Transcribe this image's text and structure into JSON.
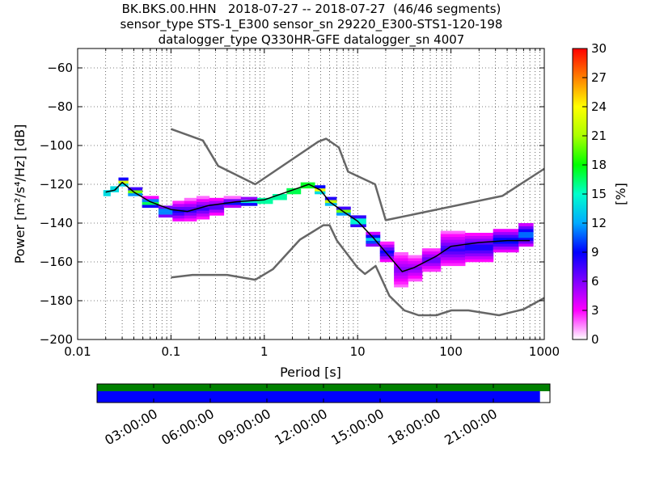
{
  "header": {
    "title_lines": [
      "BK.BKS.00.HHN   2018-07-27 -- 2018-07-27  (46/46 segments)",
      "sensor_type STS-1_E300 sensor_sn 29220_E300-STS1-120-198",
      "datalogger_type Q330HR-GFE datalogger_sn 4007"
    ]
  },
  "chart_data": [
    {
      "type": "heatmap",
      "xlabel": "Period [s]",
      "ylabel": "Power [m²/s⁴/Hz] [dB]",
      "xscale": "log",
      "xlim": [
        0.01,
        1000
      ],
      "ylim": [
        -200,
        -50
      ],
      "x_ticks": [
        0.01,
        0.1,
        1,
        10,
        100,
        1000
      ],
      "x_tick_labels": [
        "0.01",
        "0.1",
        "1",
        "10",
        "100",
        "1000"
      ],
      "y_ticks": [
        -60,
        -80,
        -100,
        -120,
        -140,
        -160,
        -180,
        -200
      ],
      "y_tick_labels": [
        "−60",
        "−80",
        "−100",
        "−120",
        "−140",
        "−160",
        "−180",
        "−200"
      ],
      "grid": true,
      "colorbar": {
        "label": "[%]",
        "range": [
          0,
          30
        ],
        "ticks": [
          0,
          3,
          6,
          9,
          12,
          15,
          18,
          21,
          24,
          27,
          30
        ],
        "colormap": [
          "#ffffff",
          "#ff00ff",
          "#8000ff",
          "#0000ff",
          "#00aaff",
          "#00ffcc",
          "#00ff00",
          "#aaff00",
          "#ffff00",
          "#ff8000",
          "#ff0000"
        ]
      },
      "density_band": [
        {
          "period": 0.02,
          "low": -126,
          "high": -123,
          "peak_pct": 22
        },
        {
          "period": 0.025,
          "low": -124,
          "high": -121,
          "peak_pct": 22
        },
        {
          "period": 0.03,
          "low": -121,
          "high": -117,
          "peak_pct": 25
        },
        {
          "period": 0.04,
          "low": -126,
          "high": -122,
          "peak_pct": 22
        },
        {
          "period": 0.06,
          "low": -132,
          "high": -127,
          "peak_pct": 18
        },
        {
          "period": 0.09,
          "low": -137,
          "high": -131,
          "peak_pct": 14
        },
        {
          "period": 0.12,
          "low": -139,
          "high": -129,
          "peak_pct": 9
        },
        {
          "period": 0.16,
          "low": -139,
          "high": -128,
          "peak_pct": 8
        },
        {
          "period": 0.22,
          "low": -138,
          "high": -127,
          "peak_pct": 8
        },
        {
          "period": 0.3,
          "low": -136,
          "high": -127,
          "peak_pct": 8
        },
        {
          "period": 0.45,
          "low": -132,
          "high": -127,
          "peak_pct": 10
        },
        {
          "period": 0.7,
          "low": -131,
          "high": -127,
          "peak_pct": 16
        },
        {
          "period": 1.0,
          "low": -130,
          "high": -127,
          "peak_pct": 25
        },
        {
          "period": 1.5,
          "low": -128,
          "high": -125,
          "peak_pct": 25
        },
        {
          "period": 2.0,
          "low": -125,
          "high": -122,
          "peak_pct": 27
        },
        {
          "period": 3.0,
          "low": -122,
          "high": -119,
          "peak_pct": 28
        },
        {
          "period": 4.0,
          "low": -125,
          "high": -121,
          "peak_pct": 26
        },
        {
          "period": 5.0,
          "low": -131,
          "high": -127,
          "peak_pct": 24
        },
        {
          "period": 7.0,
          "low": -136,
          "high": -132,
          "peak_pct": 22
        },
        {
          "period": 10.0,
          "low": -142,
          "high": -136,
          "peak_pct": 18
        },
        {
          "period": 15.0,
          "low": -152,
          "high": -145,
          "peak_pct": 14
        },
        {
          "period": 20.0,
          "low": -160,
          "high": -150,
          "peak_pct": 9
        },
        {
          "period": 30.0,
          "low": -173,
          "high": -155,
          "peak_pct": 6
        },
        {
          "period": 40.0,
          "low": -170,
          "high": -157,
          "peak_pct": 6
        },
        {
          "period": 60.0,
          "low": -165,
          "high": -153,
          "peak_pct": 7
        },
        {
          "period": 100.0,
          "low": -162,
          "high": -145,
          "peak_pct": 8
        },
        {
          "period": 200.0,
          "low": -160,
          "high": -145,
          "peak_pct": 9
        },
        {
          "period": 400.0,
          "low": -155,
          "high": -143,
          "peak_pct": 10
        },
        {
          "period": 700.0,
          "low": -152,
          "high": -140,
          "peak_pct": 12
        }
      ],
      "mean_curve": [
        {
          "period": 0.02,
          "db": -124
        },
        {
          "period": 0.025,
          "db": -123
        },
        {
          "period": 0.03,
          "db": -119
        },
        {
          "period": 0.04,
          "db": -124
        },
        {
          "period": 0.06,
          "db": -129
        },
        {
          "period": 0.1,
          "db": -133
        },
        {
          "period": 0.15,
          "db": -134
        },
        {
          "period": 0.25,
          "db": -131
        },
        {
          "period": 0.5,
          "db": -129
        },
        {
          "period": 1.0,
          "db": -128
        },
        {
          "period": 2.0,
          "db": -123
        },
        {
          "period": 3.0,
          "db": -120
        },
        {
          "period": 4.0,
          "db": -123
        },
        {
          "period": 5.0,
          "db": -129
        },
        {
          "period": 7.0,
          "db": -134
        },
        {
          "period": 10.0,
          "db": -139
        },
        {
          "period": 15.0,
          "db": -148
        },
        {
          "period": 20.0,
          "db": -155
        },
        {
          "period": 30.0,
          "db": -165
        },
        {
          "period": 40.0,
          "db": -163
        },
        {
          "period": 70.0,
          "db": -157
        },
        {
          "period": 100.0,
          "db": -152
        },
        {
          "period": 200.0,
          "db": -150
        },
        {
          "period": 400.0,
          "db": -149
        },
        {
          "period": 700.0,
          "db": -149
        }
      ],
      "nhnm": [
        {
          "period": 0.1,
          "db": -91.5
        },
        {
          "period": 0.22,
          "db": -97.4
        },
        {
          "period": 0.32,
          "db": -110.5
        },
        {
          "period": 0.8,
          "db": -120
        },
        {
          "period": 3.8,
          "db": -98
        },
        {
          "period": 4.6,
          "db": -96.5
        },
        {
          "period": 6.3,
          "db": -101
        },
        {
          "period": 7.9,
          "db": -113.5
        },
        {
          "period": 15.4,
          "db": -120
        },
        {
          "period": 20,
          "db": -138.5
        },
        {
          "period": 354.8,
          "db": -126
        },
        {
          "period": 1000,
          "db": -112
        }
      ],
      "nlnm": [
        {
          "period": 0.1,
          "db": -168
        },
        {
          "period": 0.17,
          "db": -166.7
        },
        {
          "period": 0.4,
          "db": -166.7
        },
        {
          "period": 0.8,
          "db": -169.2
        },
        {
          "period": 1.24,
          "db": -163.7
        },
        {
          "period": 2.4,
          "db": -148.6
        },
        {
          "period": 4.3,
          "db": -141.1
        },
        {
          "period": 5.0,
          "db": -141.1
        },
        {
          "period": 6.0,
          "db": -149
        },
        {
          "period": 10.0,
          "db": -163
        },
        {
          "period": 12.0,
          "db": -166.2
        },
        {
          "period": 15.6,
          "db": -162.1
        },
        {
          "period": 21.9,
          "db": -177.5
        },
        {
          "period": 31.6,
          "db": -185
        },
        {
          "period": 45,
          "db": -187.5
        },
        {
          "period": 70,
          "db": -187.5
        },
        {
          "period": 101,
          "db": -185
        },
        {
          "period": 154,
          "db": -185
        },
        {
          "period": 328,
          "db": -187.5
        },
        {
          "period": 600,
          "db": -184.4
        },
        {
          "period": 1000,
          "db": -178.6
        }
      ]
    },
    {
      "type": "table",
      "description_of": "data coverage timeline",
      "x_tick_labels": [
        "03:00:00",
        "06:00:00",
        "09:00:00",
        "12:00:00",
        "15:00:00",
        "18:00:00",
        "21:00:00"
      ],
      "green_coverage_fraction": 1.0,
      "blue_coverage_fraction": 0.978,
      "colors": {
        "green": "#008000",
        "blue": "#0000ff"
      }
    }
  ]
}
